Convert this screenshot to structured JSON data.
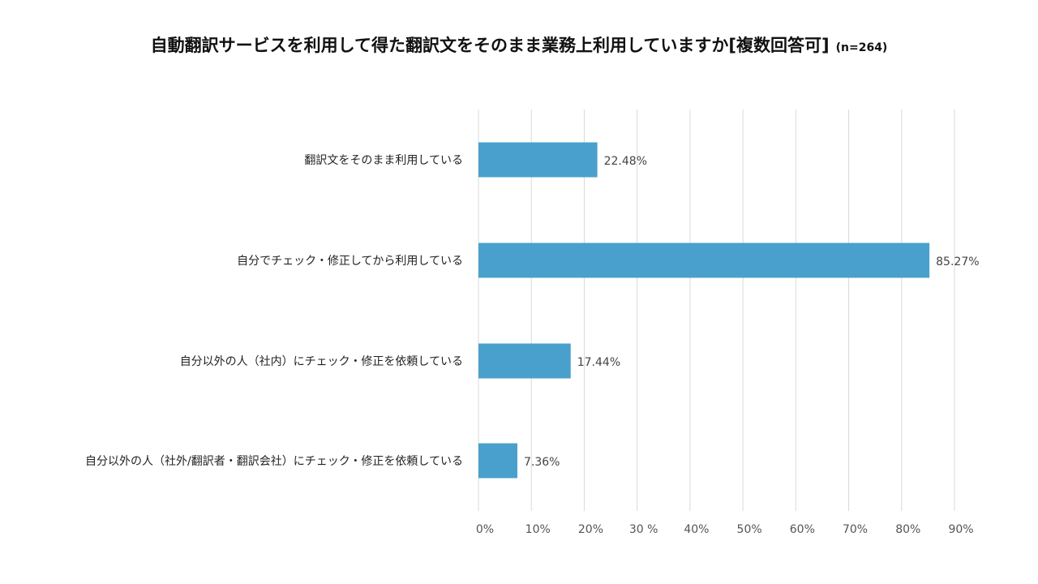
{
  "chart_data": {
    "type": "bar",
    "orientation": "horizontal",
    "title": "自動翻訳サービスを利用して得た翻訳文をそのまま業務上利用していますか[複数回答可]",
    "subtitle": "(n=264)",
    "categories": [
      "翻訳文をそのまま利用している",
      "自分でチェック・修正してから利用している",
      "自分以外の人（社内）にチェック・修正を依頼している",
      "自分以外の人（社外/翻訳者・翻訳会社）にチェック・修正を依頼している"
    ],
    "values": [
      22.48,
      85.27,
      17.44,
      7.36
    ],
    "value_labels": [
      "22.48%",
      "85.27%",
      "17.44%",
      "7.36%"
    ],
    "xlim": [
      0,
      90
    ],
    "x_ticks": [
      0,
      10,
      20,
      30,
      40,
      50,
      60,
      70,
      80,
      90
    ],
    "x_tick_labels": [
      "0%",
      "10%",
      "20%",
      "30 %",
      "40%",
      "50%",
      "60%",
      "70%",
      "80%",
      "90%"
    ],
    "xlabel": "",
    "ylabel": "",
    "grid": true,
    "bar_color": "#4aa0cc",
    "grid_color": "#d9d9d9"
  }
}
